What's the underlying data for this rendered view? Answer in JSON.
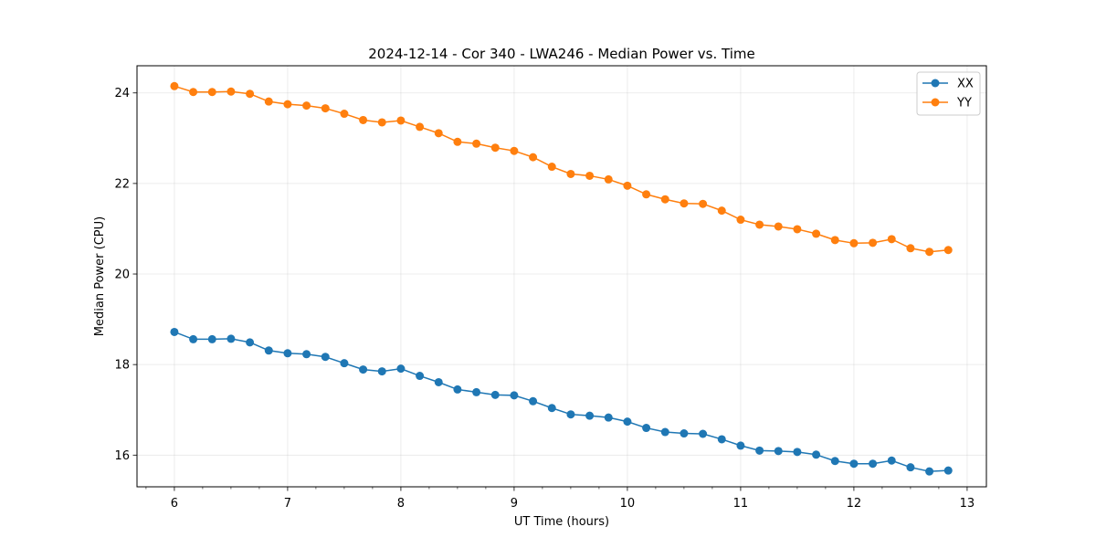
{
  "chart_data": {
    "type": "line",
    "title": "2024-12-14 - Cor 340 - LWA246 - Median Power vs. Time",
    "xlabel": "UT Time (hours)",
    "ylabel": "Median Power (CPU)",
    "xlim": [
      5.67,
      13.17
    ],
    "ylim": [
      15.3,
      24.6
    ],
    "xticks": [
      6,
      7,
      8,
      9,
      10,
      11,
      12,
      13
    ],
    "xtick_labels": [
      "6",
      "7",
      "8",
      "9",
      "10",
      "11",
      "12",
      "13"
    ],
    "yticks": [
      16,
      18,
      20,
      22,
      24
    ],
    "ytick_labels": [
      "16",
      "18",
      "20",
      "22",
      "24"
    ],
    "grid": true,
    "legend_position": "top-right",
    "x": [
      6.0,
      6.1667,
      6.3333,
      6.5,
      6.6667,
      6.8333,
      7.0,
      7.1667,
      7.3333,
      7.5,
      7.6667,
      7.8333,
      8.0,
      8.1667,
      8.3333,
      8.5,
      8.6667,
      8.8333,
      9.0,
      9.1667,
      9.3333,
      9.5,
      9.6667,
      9.8333,
      10.0,
      10.1667,
      10.3333,
      10.5,
      10.6667,
      10.8333,
      11.0,
      11.1667,
      11.3333,
      11.5,
      11.6667,
      11.8333,
      12.0,
      12.1667,
      12.3333,
      12.5,
      12.6667,
      12.8333
    ],
    "series": [
      {
        "name": "XX",
        "color": "#1f77b4",
        "values": [
          18.72,
          18.56,
          18.56,
          18.57,
          18.49,
          18.31,
          18.25,
          18.23,
          18.17,
          18.03,
          17.89,
          17.85,
          17.91,
          17.75,
          17.61,
          17.45,
          17.39,
          17.33,
          17.32,
          17.19,
          17.04,
          16.9,
          16.87,
          16.83,
          16.74,
          16.6,
          16.51,
          16.48,
          16.47,
          16.35,
          16.21,
          16.1,
          16.09,
          16.07,
          16.01,
          15.87,
          15.81,
          15.81,
          15.88,
          15.73,
          15.64,
          15.66
        ]
      },
      {
        "name": "YY",
        "color": "#ff7f0e",
        "values": [
          24.15,
          24.02,
          24.02,
          24.03,
          23.98,
          23.81,
          23.75,
          23.72,
          23.66,
          23.54,
          23.4,
          23.35,
          23.39,
          23.25,
          23.11,
          22.92,
          22.88,
          22.79,
          22.72,
          22.58,
          22.37,
          22.21,
          22.17,
          22.09,
          21.95,
          21.76,
          21.65,
          21.56,
          21.55,
          21.4,
          21.2,
          21.09,
          21.05,
          20.99,
          20.89,
          20.75,
          20.68,
          20.69,
          20.77,
          20.57,
          20.49,
          20.53
        ]
      }
    ]
  }
}
